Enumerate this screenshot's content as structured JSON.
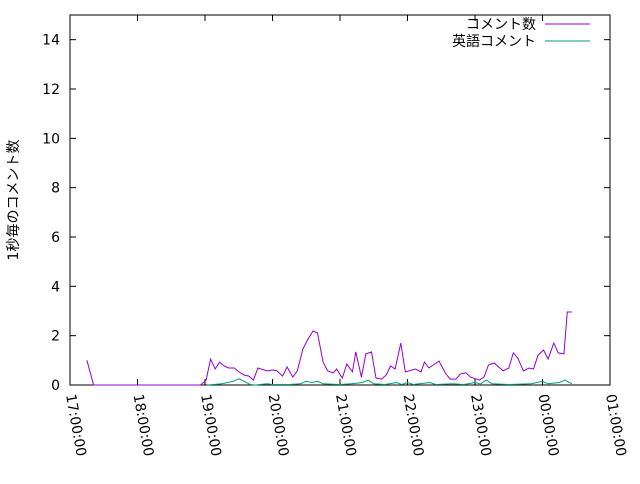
{
  "chart_data": {
    "type": "line",
    "title": "",
    "xlabel": "",
    "ylabel": "1秒毎のコメント数",
    "ylim": [
      0,
      15
    ],
    "yticks": [
      "0",
      "2",
      "4",
      "6",
      "8",
      "10",
      "12",
      "14"
    ],
    "xticks": [
      "17:00:00",
      "18:00:00",
      "19:00:00",
      "20:00:00",
      "21:00:00",
      "22:00:00",
      "23:00:00",
      "00:00:00",
      "01:00:00"
    ],
    "xlim": [
      "17:00:00",
      "01:00:00"
    ],
    "grid": false,
    "legend_position": "top-right",
    "series": [
      {
        "name": "コメント数",
        "color": "#9400d3",
        "points": [
          [
            "17:15",
            1.0
          ],
          [
            "17:21",
            0
          ],
          [
            "18:56",
            0
          ],
          [
            "19:01",
            0.2
          ],
          [
            "19:05",
            1.05
          ],
          [
            "19:09",
            0.65
          ],
          [
            "19:13",
            0.93
          ],
          [
            "19:17",
            0.77
          ],
          [
            "19:21",
            0.69
          ],
          [
            "19:26",
            0.69
          ],
          [
            "19:30",
            0.53
          ],
          [
            "19:35",
            0.4
          ],
          [
            "19:39",
            0.36
          ],
          [
            "19:43",
            0.2
          ],
          [
            "19:47",
            0.69
          ],
          [
            "19:55",
            0.57
          ],
          [
            "20:00",
            0.61
          ],
          [
            "20:04",
            0.57
          ],
          [
            "20:09",
            0.36
          ],
          [
            "20:13",
            0.73
          ],
          [
            "20:18",
            0.32
          ],
          [
            "20:22",
            0.57
          ],
          [
            "20:27",
            1.46
          ],
          [
            "20:31",
            1.82
          ],
          [
            "20:36",
            2.19
          ],
          [
            "20:40",
            2.11
          ],
          [
            "20:45",
            0.93
          ],
          [
            "20:49",
            0.57
          ],
          [
            "20:54",
            0.49
          ],
          [
            "20:57",
            0.65
          ],
          [
            "21:02",
            0.28
          ],
          [
            "21:06",
            0.85
          ],
          [
            "21:11",
            0.53
          ],
          [
            "21:14",
            1.34
          ],
          [
            "21:19",
            0.32
          ],
          [
            "21:23",
            1.26
          ],
          [
            "21:28",
            1.34
          ],
          [
            "21:32",
            0.28
          ],
          [
            "21:37",
            0.24
          ],
          [
            "21:41",
            0.4
          ],
          [
            "21:45",
            0.77
          ],
          [
            "21:49",
            0.65
          ],
          [
            "21:54",
            1.7
          ],
          [
            "21:58",
            0.53
          ],
          [
            "22:07",
            0.65
          ],
          [
            "22:12",
            0.53
          ],
          [
            "22:15",
            0.93
          ],
          [
            "22:19",
            0.69
          ],
          [
            "22:28",
            0.97
          ],
          [
            "22:34",
            0.45
          ],
          [
            "22:38",
            0.24
          ],
          [
            "22:43",
            0.24
          ],
          [
            "22:47",
            0.45
          ],
          [
            "22:52",
            0.49
          ],
          [
            "22:56",
            0.32
          ],
          [
            "23:04",
            0.2
          ],
          [
            "23:08",
            0.32
          ],
          [
            "23:12",
            0.81
          ],
          [
            "23:17",
            0.89
          ],
          [
            "23:25",
            0.57
          ],
          [
            "23:30",
            0.69
          ],
          [
            "23:34",
            1.3
          ],
          [
            "23:38",
            1.09
          ],
          [
            "23:43",
            0.57
          ],
          [
            "23:48",
            0.69
          ],
          [
            "23:52",
            0.65
          ],
          [
            "23:56",
            1.21
          ],
          [
            "00:01",
            1.42
          ],
          [
            "00:05",
            1.05
          ],
          [
            "00:10",
            1.7
          ],
          [
            "00:14",
            1.3
          ],
          [
            "00:19",
            1.26
          ],
          [
            "00:22",
            2.96
          ],
          [
            "00:26",
            2.96
          ]
        ]
      },
      {
        "name": "英語コメント",
        "color": "#009e73",
        "points": [
          [
            "19:02",
            0
          ],
          [
            "19:15",
            0.05
          ],
          [
            "19:25",
            0.15
          ],
          [
            "19:30",
            0.25
          ],
          [
            "19:35",
            0.15
          ],
          [
            "19:40",
            0.02
          ],
          [
            "19:45",
            0
          ],
          [
            "19:55",
            0.05
          ],
          [
            "20:00",
            0.02
          ],
          [
            "20:15",
            0.02
          ],
          [
            "20:25",
            0.05
          ],
          [
            "20:30",
            0.15
          ],
          [
            "20:35",
            0.1
          ],
          [
            "20:40",
            0.15
          ],
          [
            "20:45",
            0.05
          ],
          [
            "21:00",
            0.02
          ],
          [
            "21:10",
            0.05
          ],
          [
            "21:20",
            0.1
          ],
          [
            "21:25",
            0.2
          ],
          [
            "21:30",
            0.05
          ],
          [
            "21:40",
            0.02
          ],
          [
            "21:50",
            0.1
          ],
          [
            "21:55",
            0.02
          ],
          [
            "22:00",
            0.1
          ],
          [
            "22:05",
            0.02
          ],
          [
            "22:20",
            0.1
          ],
          [
            "22:25",
            0.02
          ],
          [
            "22:40",
            0.05
          ],
          [
            "22:50",
            0.02
          ],
          [
            "23:00",
            0.1
          ],
          [
            "23:05",
            0.05
          ],
          [
            "23:10",
            0.2
          ],
          [
            "23:15",
            0.05
          ],
          [
            "23:30",
            0.02
          ],
          [
            "23:50",
            0.05
          ],
          [
            "00:00",
            0.15
          ],
          [
            "00:05",
            0.05
          ],
          [
            "00:15",
            0.1
          ],
          [
            "00:20",
            0.2
          ],
          [
            "00:26",
            0.05
          ]
        ]
      }
    ]
  }
}
